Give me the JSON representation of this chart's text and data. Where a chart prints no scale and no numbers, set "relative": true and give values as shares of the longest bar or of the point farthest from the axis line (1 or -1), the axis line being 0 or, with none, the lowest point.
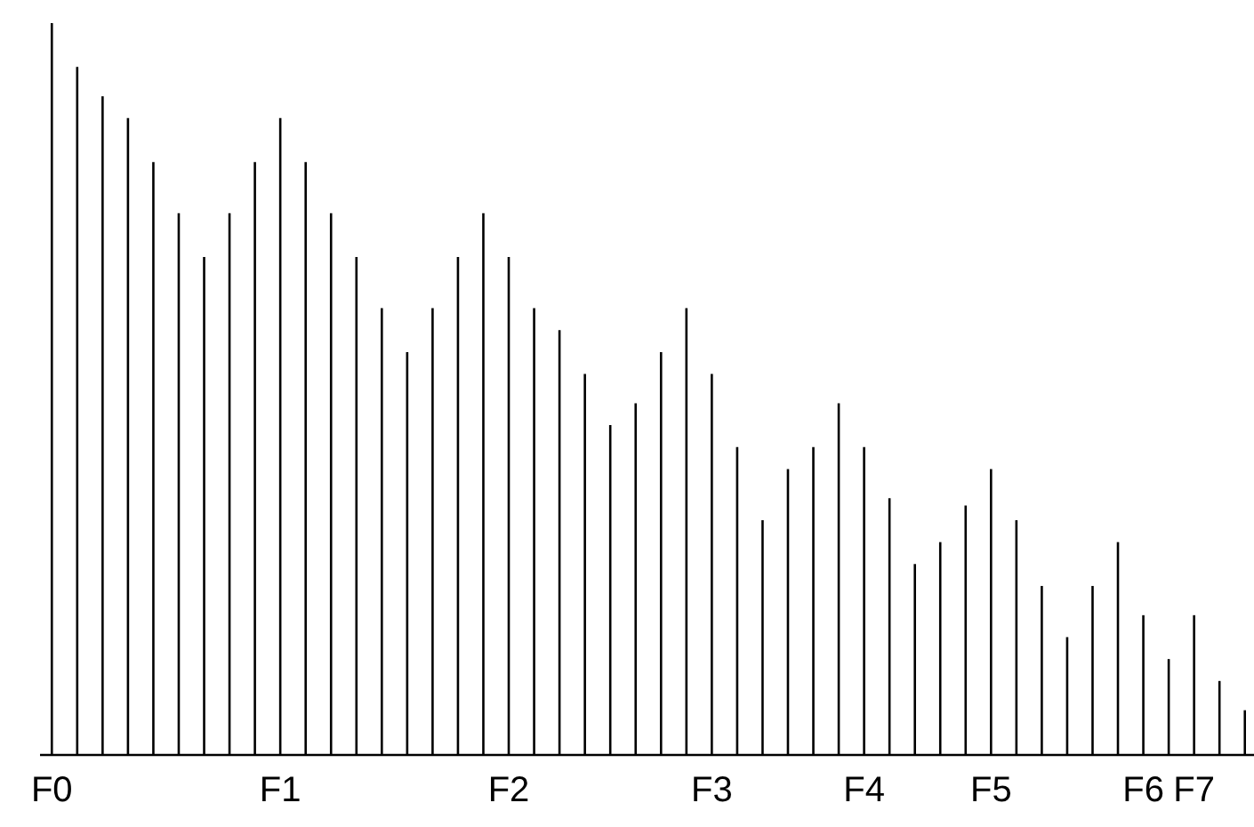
{
  "chart_data": {
    "type": "bar",
    "relative": true,
    "color": "#000000",
    "categories": [
      "F0",
      null,
      null,
      null,
      null,
      null,
      null,
      null,
      null,
      "F1",
      null,
      null,
      null,
      null,
      null,
      null,
      null,
      null,
      "F2",
      null,
      null,
      null,
      null,
      null,
      null,
      null,
      "F3",
      null,
      null,
      null,
      null,
      null,
      "F4",
      null,
      null,
      null,
      null,
      "F5",
      null,
      null,
      null,
      null,
      null,
      "F6",
      null,
      "F7",
      null,
      null
    ],
    "values": [
      1,
      0.94,
      0.9,
      0.87,
      0.81,
      0.74,
      0.68,
      0.74,
      0.81,
      0.87,
      0.81,
      0.74,
      0.68,
      0.61,
      0.55,
      0.61,
      0.68,
      0.74,
      0.68,
      0.61,
      0.58,
      0.52,
      0.45,
      0.48,
      0.55,
      0.61,
      0.52,
      0.42,
      0.32,
      0.39,
      0.42,
      0.48,
      0.42,
      0.35,
      0.26,
      0.29,
      0.34,
      0.39,
      0.32,
      0.23,
      0.16,
      0.23,
      0.29,
      0.19,
      0.13,
      0.19,
      0.1,
      0.06
    ]
  }
}
